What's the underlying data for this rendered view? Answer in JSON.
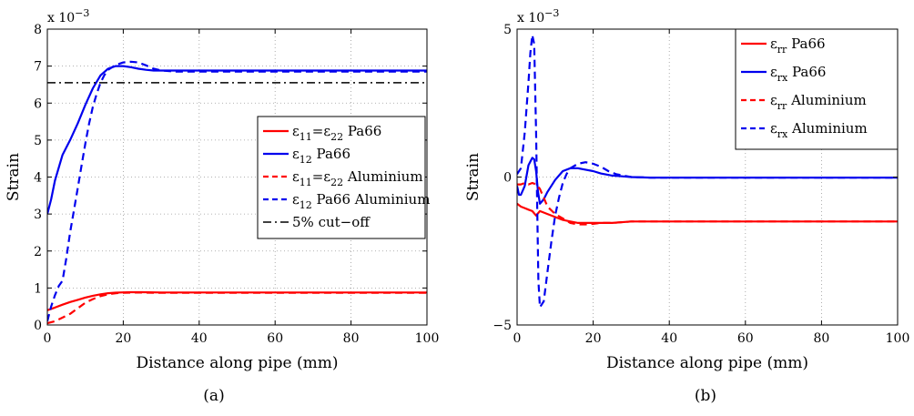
{
  "chart_data": [
    {
      "type": "line",
      "caption": "(a)",
      "xlabel": "Distance along pipe (mm)",
      "ylabel": "Strain",
      "exponent_label": "x 10",
      "exponent_power": "−3",
      "xlim": [
        0,
        100
      ],
      "ylim": [
        0,
        8
      ],
      "xticks": [
        0,
        20,
        40,
        60,
        80,
        100
      ],
      "yticks": [
        0,
        1,
        2,
        3,
        4,
        5,
        6,
        7,
        8
      ],
      "grid": true,
      "legend_position": "right-middle",
      "series": [
        {
          "name": "ε11=ε22 Pa66",
          "legend_parts": [
            [
              "ε",
              "",
              ""
            ],
            [
              "11",
              "sub",
              ""
            ],
            [
              "=ε",
              "",
              ""
            ],
            [
              "22",
              "sub",
              ""
            ],
            [
              " Pa66",
              "",
              ""
            ]
          ],
          "color": "#ff0000",
          "dash": "solid",
          "x": [
            0,
            2,
            4,
            6,
            8,
            10,
            12,
            14,
            16,
            18,
            20,
            22,
            25,
            30,
            40,
            60,
            80,
            100
          ],
          "y": [
            0.4,
            0.47,
            0.55,
            0.62,
            0.68,
            0.74,
            0.79,
            0.83,
            0.86,
            0.875,
            0.882,
            0.885,
            0.885,
            0.88,
            0.88,
            0.88,
            0.88,
            0.88
          ]
        },
        {
          "name": "ε12 Pa66",
          "legend_parts": [
            [
              "ε",
              "",
              ""
            ],
            [
              "12",
              "sub",
              ""
            ],
            [
              " Pa66",
              "",
              ""
            ]
          ],
          "color": "#0000ee",
          "dash": "solid",
          "x": [
            0,
            1,
            2,
            4,
            6,
            8,
            10,
            12,
            14,
            16,
            18,
            20,
            22,
            24,
            26,
            28,
            30,
            34,
            40,
            60,
            80,
            100
          ],
          "y": [
            3.0,
            3.4,
            3.9,
            4.6,
            5.0,
            5.45,
            5.95,
            6.4,
            6.75,
            6.93,
            7.0,
            7.0,
            6.97,
            6.93,
            6.9,
            6.88,
            6.88,
            6.88,
            6.88,
            6.88,
            6.88,
            6.88
          ]
        },
        {
          "name": "ε11=ε22 Aluminium",
          "legend_parts": [
            [
              "ε",
              "",
              ""
            ],
            [
              "11",
              "sub",
              ""
            ],
            [
              "=ε",
              "",
              ""
            ],
            [
              "22",
              "sub",
              ""
            ],
            [
              " Aluminium",
              "",
              ""
            ]
          ],
          "color": "#ff0000",
          "dash": "dashed",
          "x": [
            0,
            2,
            4,
            6,
            8,
            10,
            12,
            14,
            16,
            18,
            20,
            22,
            24,
            26,
            30,
            40,
            60,
            80,
            100
          ],
          "y": [
            0.05,
            0.1,
            0.2,
            0.3,
            0.45,
            0.6,
            0.7,
            0.78,
            0.83,
            0.86,
            0.87,
            0.875,
            0.878,
            0.875,
            0.87,
            0.87,
            0.87,
            0.87,
            0.87
          ]
        },
        {
          "name": "ε12 Pa66 Aluminium",
          "legend_parts": [
            [
              "ε",
              "",
              ""
            ],
            [
              "12",
              "sub",
              ""
            ],
            [
              " Pa66 Aluminium",
              "",
              ""
            ]
          ],
          "color": "#0000ee",
          "dash": "dashed",
          "x": [
            0,
            1,
            2,
            3,
            4,
            5,
            6,
            7,
            8,
            9,
            10,
            11,
            12,
            13,
            14,
            15,
            16,
            18,
            20,
            22,
            24,
            26,
            28,
            30,
            34,
            40,
            60,
            80,
            100
          ],
          "y": [
            0.1,
            0.5,
            0.8,
            1.05,
            1.2,
            1.8,
            2.5,
            3.1,
            3.7,
            4.3,
            4.9,
            5.45,
            5.9,
            6.25,
            6.55,
            6.75,
            6.9,
            7.03,
            7.1,
            7.12,
            7.1,
            7.02,
            6.93,
            6.88,
            6.85,
            6.85,
            6.85,
            6.85,
            6.85
          ]
        },
        {
          "name": "5% cut−off",
          "legend_parts": [
            [
              "5% cut−off",
              "",
              ""
            ]
          ],
          "color": "#000000",
          "dash": "dashdot",
          "x": [
            0,
            100
          ],
          "y": [
            6.55,
            6.55
          ]
        }
      ]
    },
    {
      "type": "line",
      "caption": "(b)",
      "xlabel": "Distance along pipe (mm)",
      "ylabel": "Strain",
      "exponent_label": "x 10",
      "exponent_power": "−3",
      "xlim": [
        0,
        100
      ],
      "ylim": [
        -5,
        5
      ],
      "xticks": [
        0,
        20,
        40,
        60,
        80,
        100
      ],
      "yticks": [
        -5,
        0,
        5
      ],
      "ytick_labels": [
        "−5",
        "0",
        "5"
      ],
      "grid": true,
      "legend_position": "top-right",
      "series": [
        {
          "name": "εrr Pa66",
          "legend_parts": [
            [
              "ε",
              "",
              ""
            ],
            [
              "rr",
              "sub",
              ""
            ],
            [
              " Pa66",
              "",
              ""
            ]
          ],
          "color": "#ff0000",
          "dash": "solid",
          "x": [
            0,
            1,
            2,
            3,
            4,
            5,
            6,
            8,
            10,
            12,
            14,
            16,
            18,
            20,
            25,
            30,
            40,
            60,
            80,
            100
          ],
          "y": [
            -0.9,
            -1.0,
            -1.05,
            -1.1,
            -1.15,
            -1.3,
            -1.15,
            -1.25,
            -1.35,
            -1.45,
            -1.5,
            -1.55,
            -1.55,
            -1.55,
            -1.55,
            -1.5,
            -1.5,
            -1.5,
            -1.5,
            -1.5
          ]
        },
        {
          "name": "εrx Pa66",
          "legend_parts": [
            [
              "ε",
              "",
              ""
            ],
            [
              "rx",
              "sub",
              ""
            ],
            [
              " Pa66",
              "",
              ""
            ]
          ],
          "color": "#0000ee",
          "dash": "solid",
          "x": [
            0,
            0.5,
            1,
            2,
            3,
            4,
            4.5,
            5,
            5.5,
            6,
            7,
            8,
            10,
            12,
            14,
            16,
            18,
            20,
            22,
            25,
            28,
            30,
            35,
            40,
            60,
            80,
            100
          ],
          "y": [
            -0.3,
            -0.6,
            -0.6,
            -0.3,
            0.4,
            0.65,
            0.6,
            0.2,
            -0.5,
            -0.9,
            -0.75,
            -0.5,
            -0.1,
            0.2,
            0.3,
            0.3,
            0.25,
            0.2,
            0.12,
            0.05,
            0.02,
            0.0,
            -0.02,
            -0.02,
            -0.02,
            -0.02,
            -0.02
          ]
        },
        {
          "name": "εrr Aluminium",
          "legend_parts": [
            [
              "ε",
              "",
              ""
            ],
            [
              "rr",
              "sub",
              ""
            ],
            [
              " Aluminium",
              "",
              ""
            ]
          ],
          "color": "#ff0000",
          "dash": "dashed",
          "x": [
            0,
            1,
            2,
            3,
            4,
            5,
            6,
            7,
            8,
            10,
            12,
            14,
            16,
            18,
            20,
            22,
            25,
            30,
            40,
            60,
            80,
            100
          ],
          "y": [
            -0.25,
            -0.25,
            -0.2,
            -0.25,
            -0.2,
            -0.25,
            -0.4,
            -0.7,
            -1.0,
            -1.25,
            -1.4,
            -1.55,
            -1.6,
            -1.6,
            -1.58,
            -1.55,
            -1.55,
            -1.5,
            -1.5,
            -1.5,
            -1.5,
            -1.5
          ]
        },
        {
          "name": "εrx Aluminium",
          "legend_parts": [
            [
              "ε",
              "",
              ""
            ],
            [
              "rx",
              "sub",
              ""
            ],
            [
              " Aluminium",
              "",
              ""
            ]
          ],
          "color": "#0000ee",
          "dash": "dashed",
          "x": [
            0,
            1,
            2,
            3,
            3.5,
            4,
            4.5,
            5,
            5.3,
            5.6,
            6,
            7,
            8,
            9,
            10,
            11,
            12,
            13,
            14,
            16,
            18,
            20,
            22,
            24,
            26,
            28,
            30,
            35,
            40,
            60,
            80,
            100
          ],
          "y": [
            0.1,
            0.3,
            1.5,
            3.2,
            4.2,
            4.8,
            4.5,
            1.5,
            -1.2,
            -3.5,
            -4.4,
            -4.2,
            -3.2,
            -2.2,
            -1.3,
            -0.7,
            -0.2,
            0.1,
            0.3,
            0.45,
            0.5,
            0.45,
            0.35,
            0.2,
            0.1,
            0.05,
            0.0,
            -0.02,
            -0.02,
            -0.02,
            -0.02,
            -0.02
          ]
        }
      ]
    }
  ]
}
